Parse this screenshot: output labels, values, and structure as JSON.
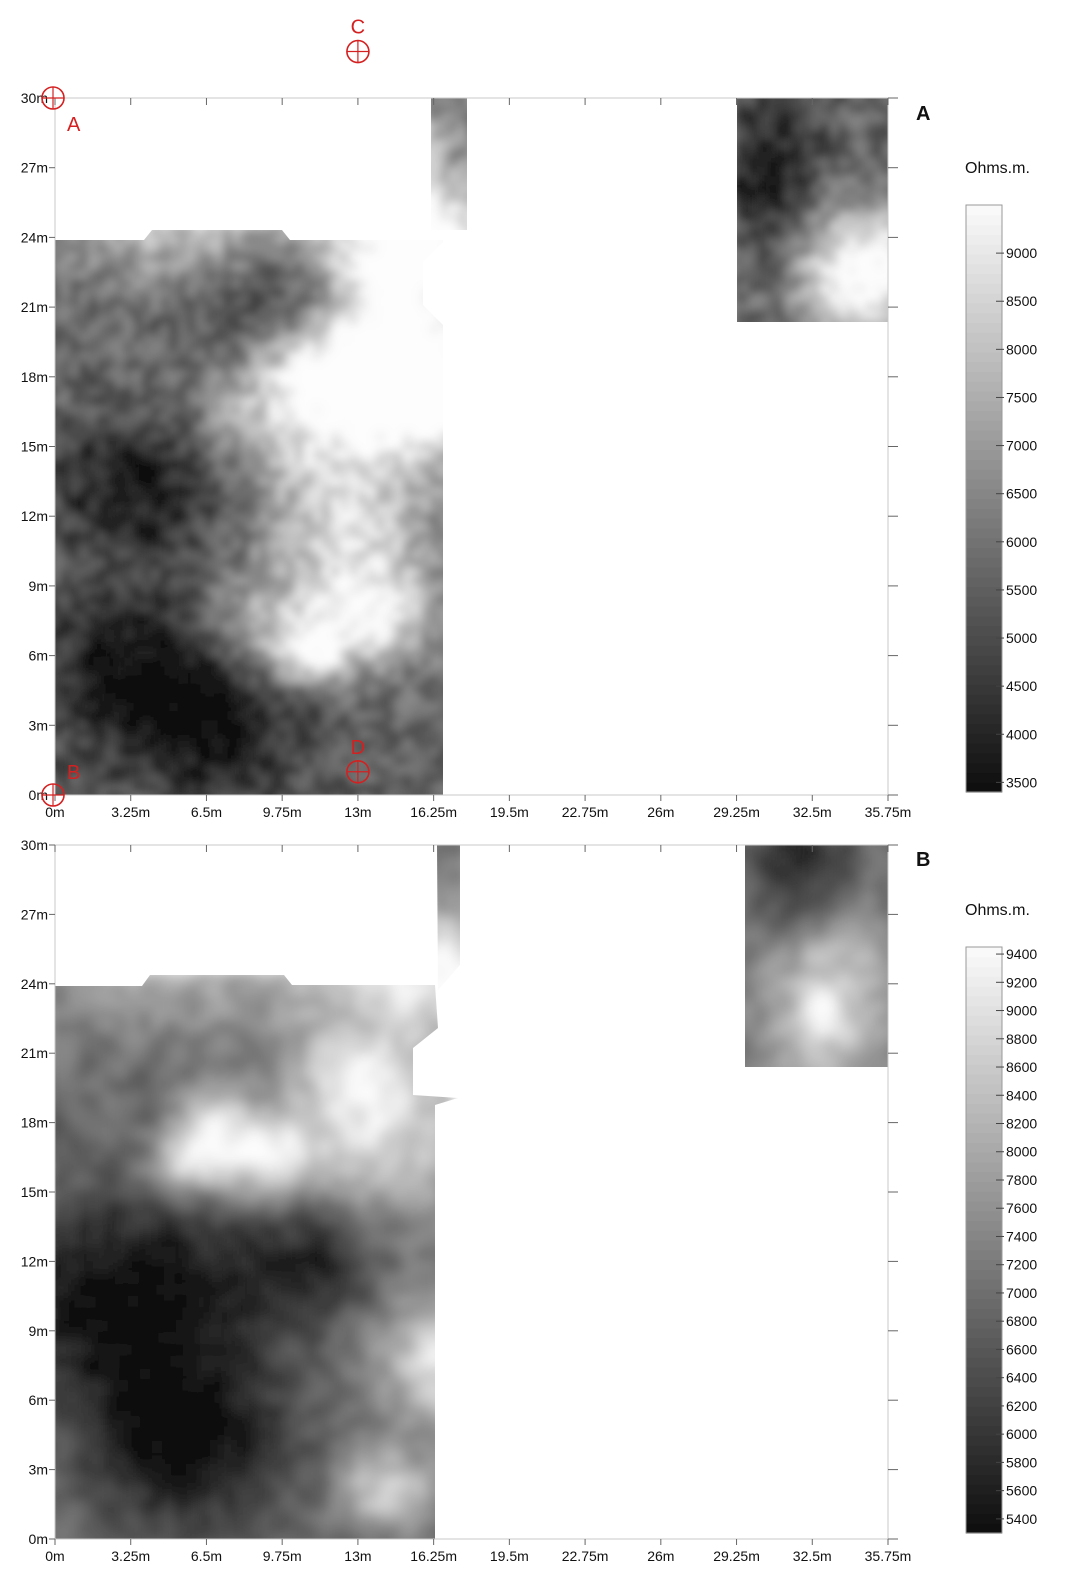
{
  "chart_data": [
    {
      "type": "heatmap",
      "panel_label": "A",
      "units": "Ohms.m.",
      "x_ticks": [
        "0m",
        "3.25m",
        "6.5m",
        "9.75m",
        "13m",
        "16.25m",
        "19.5m",
        "22.75m",
        "26m",
        "29.25m",
        "32.5m",
        "35.75m"
      ],
      "y_ticks": [
        "0m",
        "3m",
        "6m",
        "9m",
        "12m",
        "15m",
        "18m",
        "21m",
        "24m",
        "27m",
        "30m"
      ],
      "xlim": [
        0,
        35.75
      ],
      "ylim": [
        0,
        30
      ],
      "colorbar_ticks": [
        "3500",
        "4000",
        "4500",
        "5000",
        "5500",
        "6000",
        "6500",
        "7000",
        "7500",
        "8000",
        "8500",
        "9000"
      ],
      "colorbar_range": [
        3400,
        9500
      ],
      "colormap": "grayscale, black = low, white = high",
      "surveyed_regions": [
        {
          "x": [
            0,
            16.5
          ],
          "y": [
            0,
            24
          ],
          "note": "main survey grid"
        },
        {
          "x": [
            16.25,
            17.5
          ],
          "y": [
            24,
            30
          ],
          "note": "narrow strip"
        },
        {
          "x": [
            29.5,
            35.75
          ],
          "y": [
            20.3,
            30
          ],
          "note": "upper-right grid"
        }
      ],
      "markers": [
        {
          "label": "A",
          "x": 0,
          "y": 30
        },
        {
          "label": "B",
          "x": 0,
          "y": 0
        },
        {
          "label": "C",
          "x": 13,
          "y": 32
        },
        {
          "label": "D",
          "x": 13,
          "y": 1
        }
      ]
    },
    {
      "type": "heatmap",
      "panel_label": "B",
      "units": "Ohms.m.",
      "x_ticks": [
        "0m",
        "3.25m",
        "6.5m",
        "9.75m",
        "13m",
        "16.25m",
        "19.5m",
        "22.75m",
        "26m",
        "29.25m",
        "32.5m",
        "35.75m"
      ],
      "y_ticks": [
        "0m",
        "3m",
        "6m",
        "9m",
        "12m",
        "15m",
        "18m",
        "21m",
        "24m",
        "27m",
        "30m"
      ],
      "xlim": [
        0,
        35.75
      ],
      "ylim": [
        0,
        30
      ],
      "colorbar_ticks": [
        "5400",
        "5600",
        "5800",
        "6000",
        "6200",
        "6400",
        "6600",
        "6800",
        "7000",
        "7200",
        "7400",
        "7600",
        "7800",
        "8000",
        "8200",
        "8400",
        "8600",
        "8800",
        "9000",
        "9200",
        "9400"
      ],
      "colorbar_range": [
        5300,
        9450
      ],
      "colormap": "grayscale, black = low, white = high",
      "surveyed_regions": [
        {
          "x": [
            0,
            16.25
          ],
          "y": [
            0,
            24
          ],
          "note": "main survey grid"
        },
        {
          "x": [
            16.25,
            17.25
          ],
          "y": [
            24,
            30
          ],
          "note": "narrow strip"
        },
        {
          "x": [
            29.5,
            35.75
          ],
          "y": [
            20.3,
            30
          ],
          "note": "upper-right grid"
        }
      ],
      "markers": []
    }
  ]
}
